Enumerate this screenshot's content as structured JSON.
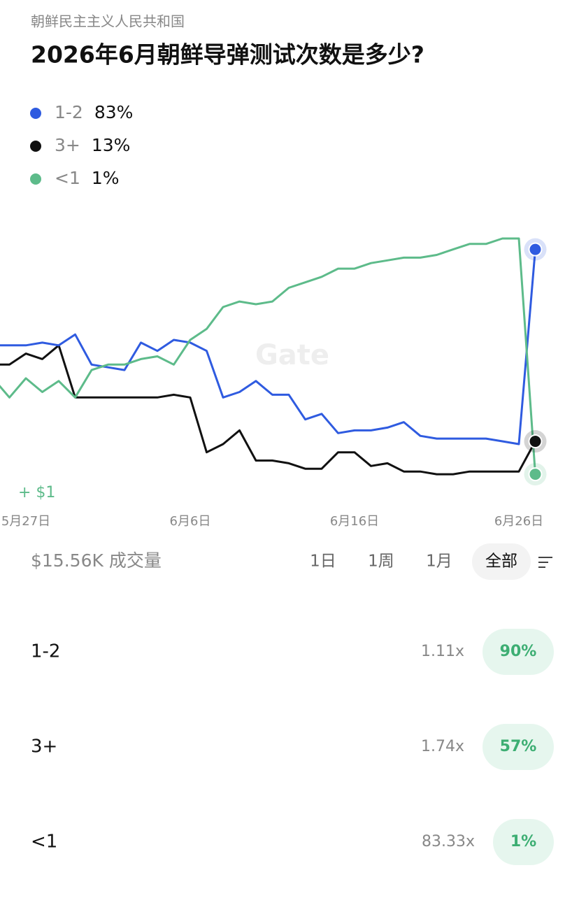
{
  "header": {
    "category": "朝鲜民主主义人民共和国",
    "title": "2026年6月朝鲜导弹测试次数是多少?"
  },
  "chart_data": {
    "type": "line",
    "categories": [
      null,
      null,
      "5月27日",
      null,
      null,
      null,
      null,
      null,
      null,
      null,
      null,
      null,
      "6月6日",
      null,
      null,
      null,
      null,
      null,
      null,
      null,
      null,
      null,
      "6月16日",
      null,
      null,
      null,
      null,
      null,
      null,
      null,
      null,
      null,
      "6月26日",
      null
    ],
    "series": [
      {
        "name": "1-2",
        "legend_label": "83%",
        "color": "#2f5be0",
        "values": [
          48,
          48,
          48,
          49,
          48,
          52,
          41,
          40,
          39,
          49,
          46,
          50,
          49,
          46,
          29,
          31,
          35,
          30,
          30,
          21,
          23,
          16,
          17,
          17,
          18,
          20,
          15,
          14,
          14,
          14,
          14,
          13,
          12,
          83
        ]
      },
      {
        "name": "3+",
        "legend_label": "13%",
        "color": "#111111",
        "values": [
          41,
          41,
          45,
          43,
          48,
          29,
          29,
          29,
          29,
          29,
          29,
          30,
          29,
          9,
          12,
          17,
          6,
          6,
          5,
          3,
          3,
          9,
          9,
          4,
          5,
          2,
          2,
          1,
          1,
          2,
          2,
          2,
          2,
          13
        ]
      },
      {
        "name": "<1",
        "legend_label": "1%",
        "color": "#5dbb8a",
        "values": [
          36,
          29,
          36,
          31,
          35,
          29,
          39,
          41,
          41,
          43,
          44,
          41,
          50,
          54,
          62,
          64,
          63,
          64,
          69,
          71,
          73,
          76,
          76,
          78,
          79,
          80,
          80,
          81,
          83,
          85,
          85,
          87,
          87,
          1
        ]
      }
    ],
    "ylim": [
      0,
      100
    ],
    "annotation": "+ $1",
    "watermark": "Gate"
  },
  "volume": "$15.56K 成交量",
  "tabs": [
    "1日",
    "1周",
    "1月",
    "全部"
  ],
  "outcomes": [
    {
      "name": "1-2",
      "multiplier": "1.11x",
      "price": "90%"
    },
    {
      "name": "3+",
      "multiplier": "1.74x",
      "price": "57%"
    },
    {
      "name": "<1",
      "multiplier": "83.33x",
      "price": "1%"
    }
  ]
}
